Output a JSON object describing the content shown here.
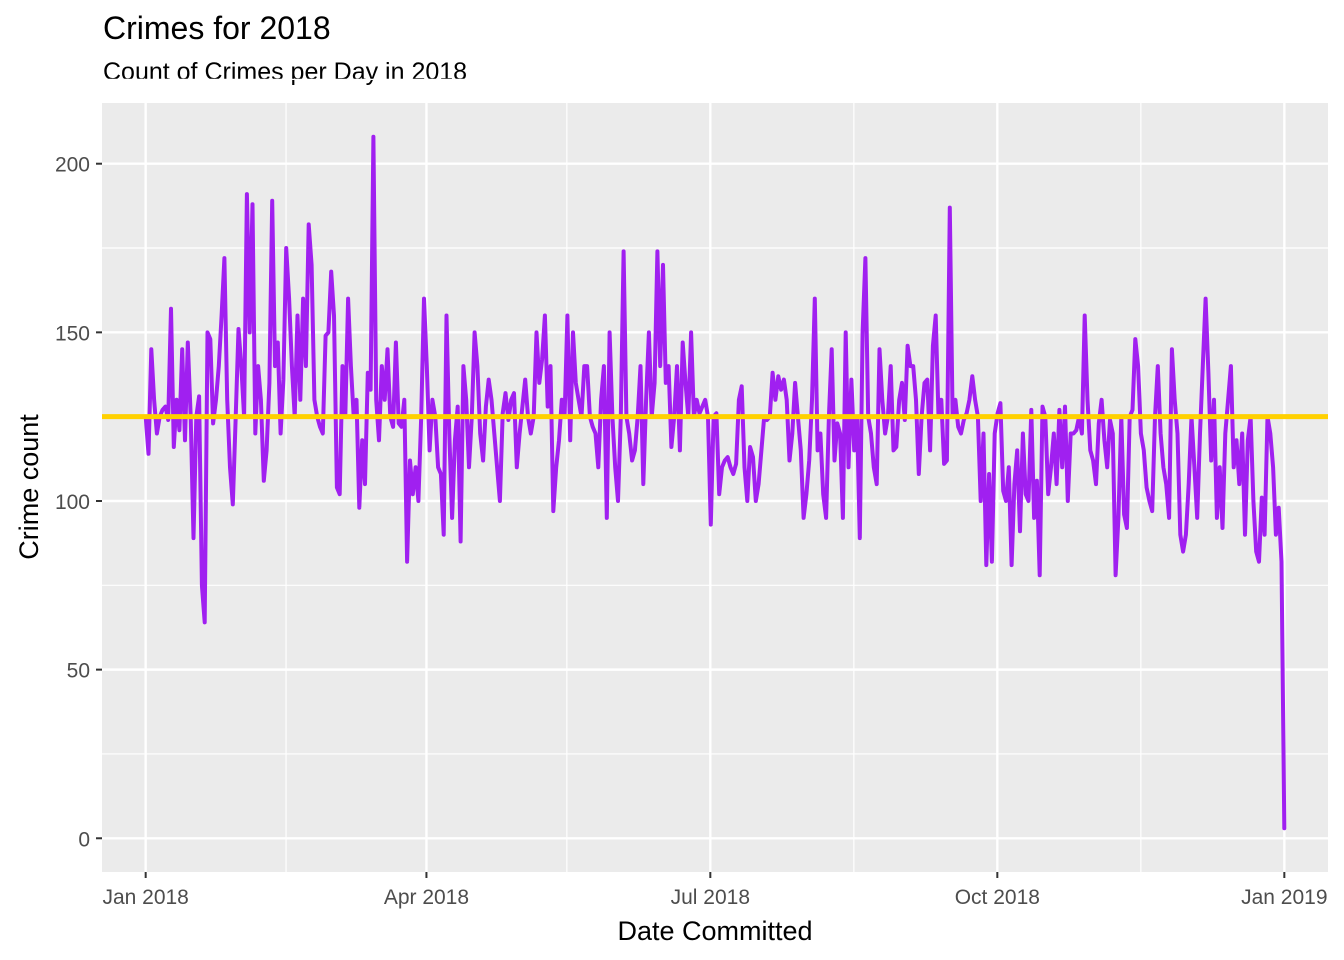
{
  "chart_data": {
    "type": "line",
    "title": "Crimes for 2018",
    "subtitle": "Count of Crimes per Day in 2018",
    "xlabel": "Date Committed",
    "ylabel": "Crime count",
    "xlim": [
      "2017-12-18",
      "2019-01-15"
    ],
    "ylim": [
      -10,
      218
    ],
    "x_ticks": [
      {
        "date": "2018-01-01",
        "label": "Jan 2018"
      },
      {
        "date": "2018-04-01",
        "label": "Apr 2018"
      },
      {
        "date": "2018-07-01",
        "label": "Jul 2018"
      },
      {
        "date": "2018-10-01",
        "label": "Oct 2018"
      },
      {
        "date": "2019-01-01",
        "label": "Jan 2019"
      }
    ],
    "x_minor_ticks": [
      "2018-02-15",
      "2018-05-16",
      "2018-08-16",
      "2018-11-16"
    ],
    "y_ticks": [
      0,
      50,
      100,
      150,
      200
    ],
    "grid": true,
    "reference_line": {
      "value": 125,
      "color": "#FFD000"
    },
    "line_color": "#A020F0",
    "series": [
      {
        "x_start": "2018-01-01",
        "values": [
          125,
          114,
          145,
          130,
          120,
          125,
          127,
          128,
          124,
          157,
          116,
          130,
          121,
          145,
          118,
          147,
          125,
          89,
          125,
          131,
          75,
          64,
          150,
          148,
          123,
          130,
          140,
          155,
          172,
          130,
          110,
          99,
          124,
          151,
          140,
          125,
          191,
          150,
          188,
          120,
          140,
          130,
          106,
          115,
          135,
          189,
          140,
          147,
          120,
          136,
          175,
          160,
          140,
          125,
          155,
          130,
          160,
          140,
          182,
          170,
          130,
          125,
          122,
          120,
          149,
          150,
          168,
          155,
          104,
          102,
          140,
          125,
          160,
          140,
          125,
          130,
          98,
          118,
          105,
          138,
          133,
          208,
          130,
          118,
          140,
          130,
          145,
          125,
          122,
          147,
          123,
          122,
          130,
          82,
          112,
          102,
          110,
          100,
          125,
          160,
          140,
          115,
          130,
          125,
          110,
          108,
          90,
          155,
          120,
          95,
          118,
          128,
          88,
          140,
          130,
          110,
          125,
          150,
          140,
          120,
          112,
          128,
          136,
          130,
          120,
          110,
          100,
          126,
          132,
          124,
          130,
          132,
          110,
          120,
          128,
          136,
          125,
          120,
          125,
          150,
          135,
          142,
          155,
          128,
          140,
          97,
          110,
          118,
          130,
          125,
          155,
          118,
          150,
          135,
          130,
          125,
          140,
          140,
          125,
          122,
          120,
          110,
          130,
          140,
          95,
          150,
          125,
          110,
          100,
          125,
          174,
          125,
          120,
          112,
          115,
          125,
          140,
          105,
          130,
          150,
          125,
          135,
          174,
          140,
          170,
          135,
          140,
          116,
          125,
          140,
          115,
          147,
          135,
          125,
          150,
          125,
          130,
          126,
          128,
          130,
          125,
          93,
          125,
          126,
          102,
          110,
          112,
          113,
          110,
          108,
          111,
          130,
          134,
          110,
          100,
          116,
          113,
          100,
          105,
          115,
          125,
          124,
          125,
          138,
          130,
          137,
          133,
          136,
          130,
          112,
          120,
          135,
          125,
          115,
          95,
          102,
          112,
          130,
          160,
          115,
          120,
          102,
          95,
          125,
          145,
          112,
          123,
          120,
          95,
          150,
          110,
          136,
          115,
          125,
          89,
          150,
          172,
          125,
          120,
          110,
          105,
          145,
          130,
          120,
          125,
          140,
          115,
          116,
          130,
          135,
          124,
          146,
          140,
          140,
          130,
          108,
          125,
          135,
          136,
          115,
          146,
          155,
          125,
          130,
          111,
          112,
          187,
          125,
          130,
          122,
          120,
          124,
          126,
          130,
          137,
          130,
          125,
          100,
          120,
          81,
          108,
          82,
          120,
          126,
          129,
          103,
          100,
          110,
          81,
          105,
          115,
          91,
          120,
          102,
          100,
          127,
          95,
          106,
          78,
          128,
          125,
          102,
          110,
          120,
          105,
          127,
          110,
          128,
          100,
          120,
          120,
          121,
          125,
          120,
          155,
          130,
          115,
          112,
          105,
          123,
          130,
          118,
          110,
          124,
          120,
          78,
          95,
          125,
          96,
          92,
          125,
          127,
          148,
          140,
          120,
          115,
          104,
          100,
          97,
          125,
          140,
          120,
          110,
          105,
          95,
          145,
          130,
          120,
          90,
          85,
          90,
          105,
          125,
          110,
          95,
          120,
          140,
          160,
          138,
          112,
          130,
          95,
          110,
          92,
          120,
          130,
          140,
          110,
          118,
          105,
          120,
          90,
          118,
          125,
          100,
          85,
          82,
          101,
          90,
          125,
          120,
          110,
          90,
          98,
          82,
          3
        ]
      }
    ]
  }
}
